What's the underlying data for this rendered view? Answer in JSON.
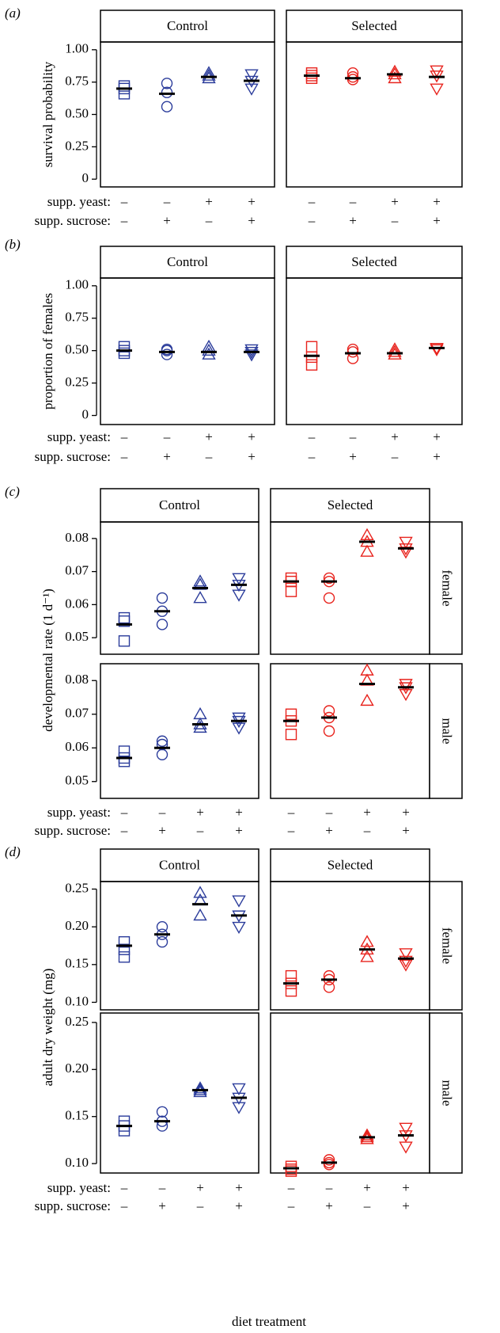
{
  "chart_data": [
    {
      "type": "scatter",
      "panel_label": "(a)",
      "ylabel": "survival probability",
      "columns": [
        "Control",
        "Selected"
      ],
      "treatments": [
        {
          "name": "supp. yeast:",
          "labels": [
            "–",
            "–",
            "+",
            "+"
          ]
        },
        {
          "name": "supp. sucrose:",
          "labels": [
            "–",
            "+",
            "–",
            "+"
          ]
        }
      ],
      "markers": [
        "square",
        "circle",
        "triangle-up",
        "triangle-down"
      ],
      "ylim": [
        -0.06,
        1.06
      ],
      "yticks": [
        0,
        0.25,
        {
          "value": 0.5,
          "label": "0.50"
        },
        0.75,
        {
          "value": 1,
          "label": "1.00"
        }
      ],
      "panels": [
        {
          "cells": [
            {
              "color": "#2b3c9b",
              "points": [
                [
                  0.72,
                  0.7,
                  0.66
                ],
                [
                  0.74,
                  0.67,
                  0.56
                ],
                [
                  0.82,
                  0.8,
                  0.78
                ],
                [
                  0.81,
                  0.76,
                  0.7
                ]
              ],
              "means": [
                0.7,
                0.66,
                0.79,
                0.76
              ]
            },
            {
              "color": "#e8231d",
              "points": [
                [
                  0.82,
                  0.8,
                  0.78
                ],
                [
                  0.82,
                  0.79,
                  0.77
                ],
                [
                  0.83,
                  0.81,
                  0.78
                ],
                [
                  0.84,
                  0.8,
                  0.7
                ]
              ],
              "means": [
                0.8,
                0.78,
                0.81,
                0.79
              ]
            }
          ]
        }
      ]
    },
    {
      "type": "scatter",
      "panel_label": "(b)",
      "ylabel": "proportion of females",
      "columns": [
        "Control",
        "Selected"
      ],
      "treatments": [
        {
          "name": "supp. yeast:",
          "labels": [
            "–",
            "–",
            "+",
            "+"
          ]
        },
        {
          "name": "supp. sucrose:",
          "labels": [
            "–",
            "+",
            "–",
            "+"
          ]
        }
      ],
      "markers": [
        "square",
        "circle",
        "triangle-up",
        "triangle-down"
      ],
      "ylim": [
        -0.07,
        1.06
      ],
      "yticks": [
        0,
        0.25,
        {
          "value": 0.5,
          "label": "0.50"
        },
        0.75,
        {
          "value": 1,
          "label": "1.00"
        }
      ],
      "panels": [
        {
          "cells": [
            {
              "color": "#2b3c9b",
              "points": [
                [
                  0.53,
                  0.5,
                  0.48
                ],
                [
                  0.51,
                  0.5,
                  0.47
                ],
                [
                  0.53,
                  0.5,
                  0.47
                ],
                [
                  0.51,
                  0.49,
                  0.47
                ]
              ],
              "means": [
                0.5,
                0.49,
                0.49,
                0.49
              ]
            },
            {
              "color": "#e8231d",
              "points": [
                [
                  0.53,
                  0.45,
                  0.39
                ],
                [
                  0.51,
                  0.49,
                  0.44
                ],
                [
                  0.51,
                  0.49,
                  0.47
                ],
                [
                  0.52,
                  0.52,
                  0.51
                ]
              ],
              "means": [
                0.46,
                0.48,
                0.48,
                0.52
              ]
            }
          ]
        }
      ]
    },
    {
      "type": "scatter",
      "panel_label": "(c)",
      "ylabel": "developmental rate (1 d⁻¹)",
      "columns": [
        "Control",
        "Selected"
      ],
      "treatments": [
        {
          "name": "supp. yeast:",
          "labels": [
            "–",
            "–",
            "+",
            "+"
          ]
        },
        {
          "name": "supp. sucrose:",
          "labels": [
            "–",
            "+",
            "–",
            "+"
          ]
        }
      ],
      "markers": [
        "square",
        "circle",
        "triangle-up",
        "triangle-down"
      ],
      "ylim": [
        0.045,
        0.085
      ],
      "yticks": [
        0.05,
        0.06,
        0.07,
        0.08
      ],
      "panels": [
        {
          "label": "female",
          "cells": [
            {
              "color": "#2b3c9b",
              "points": [
                [
                  0.056,
                  0.055,
                  0.049
                ],
                [
                  0.062,
                  0.058,
                  0.054
                ],
                [
                  0.067,
                  0.066,
                  0.062
                ],
                [
                  0.068,
                  0.066,
                  0.063
                ]
              ],
              "means": [
                0.054,
                0.058,
                0.065,
                0.066
              ]
            },
            {
              "color": "#e8231d",
              "points": [
                [
                  0.068,
                  0.067,
                  0.064
                ],
                [
                  0.068,
                  0.067,
                  0.062
                ],
                [
                  0.081,
                  0.079,
                  0.076
                ],
                [
                  0.079,
                  0.077,
                  0.076
                ]
              ],
              "means": [
                0.067,
                0.067,
                0.079,
                0.077
              ]
            }
          ]
        },
        {
          "label": "male",
          "cells": [
            {
              "color": "#2b3c9b",
              "points": [
                [
                  0.059,
                  0.057,
                  0.056
                ],
                [
                  0.062,
                  0.061,
                  0.058
                ],
                [
                  0.07,
                  0.067,
                  0.066
                ],
                [
                  0.069,
                  0.068,
                  0.066
                ]
              ],
              "means": [
                0.057,
                0.06,
                0.067,
                0.068
              ]
            },
            {
              "color": "#e8231d",
              "points": [
                [
                  0.07,
                  0.068,
                  0.064
                ],
                [
                  0.071,
                  0.069,
                  0.065
                ],
                [
                  0.083,
                  0.08,
                  0.074
                ],
                [
                  0.079,
                  0.078,
                  0.076
                ]
              ],
              "means": [
                0.068,
                0.069,
                0.079,
                0.078
              ]
            }
          ]
        }
      ]
    },
    {
      "type": "scatter",
      "panel_label": "(d)",
      "ylabel": "adult dry weight (mg)",
      "xlabel": "diet treatment",
      "columns": [
        "Control",
        "Selected"
      ],
      "treatments": [
        {
          "name": "supp. yeast:",
          "labels": [
            "–",
            "–",
            "+",
            "+"
          ]
        },
        {
          "name": "supp. sucrose:",
          "labels": [
            "–",
            "+",
            "–",
            "+"
          ]
        }
      ],
      "markers": [
        "square",
        "circle",
        "triangle-up",
        "triangle-down"
      ],
      "ylim": [
        0.09,
        0.26
      ],
      "yticks": [
        {
          "value": 0.1,
          "label": "0.10"
        },
        0.15,
        {
          "value": 0.2,
          "label": "0.20"
        },
        0.25
      ],
      "panels": [
        {
          "label": "female",
          "cells": [
            {
              "color": "#2b3c9b",
              "points": [
                [
                  0.18,
                  0.17,
                  0.16
                ],
                [
                  0.2,
                  0.19,
                  0.18
                ],
                [
                  0.245,
                  0.235,
                  0.215
                ],
                [
                  0.235,
                  0.215,
                  0.2
                ]
              ],
              "means": [
                0.175,
                0.19,
                0.23,
                0.215
              ]
            },
            {
              "color": "#e8231d",
              "points": [
                [
                  0.135,
                  0.125,
                  0.115
                ],
                [
                  0.135,
                  0.13,
                  0.12
                ],
                [
                  0.18,
                  0.17,
                  0.16
                ],
                [
                  0.165,
                  0.155,
                  0.15
                ]
              ],
              "means": [
                0.125,
                0.13,
                0.17,
                0.158
              ]
            }
          ]
        },
        {
          "label": "male",
          "cells": [
            {
              "color": "#2b3c9b",
              "points": [
                [
                  0.145,
                  0.14,
                  0.135
                ],
                [
                  0.155,
                  0.145,
                  0.14
                ],
                [
                  0.18,
                  0.178,
                  0.176
                ],
                [
                  0.18,
                  0.17,
                  0.16
                ]
              ],
              "means": [
                0.14,
                0.145,
                0.178,
                0.17
              ]
            },
            {
              "color": "#e8231d",
              "points": [
                [
                  0.097,
                  0.094,
                  0.092
                ],
                [
                  0.104,
                  0.101,
                  0.099
                ],
                [
                  0.13,
                  0.128,
                  0.126
                ],
                [
                  0.138,
                  0.13,
                  0.118
                ]
              ],
              "means": [
                0.095,
                0.101,
                0.128,
                0.13
              ]
            }
          ]
        }
      ]
    }
  ]
}
